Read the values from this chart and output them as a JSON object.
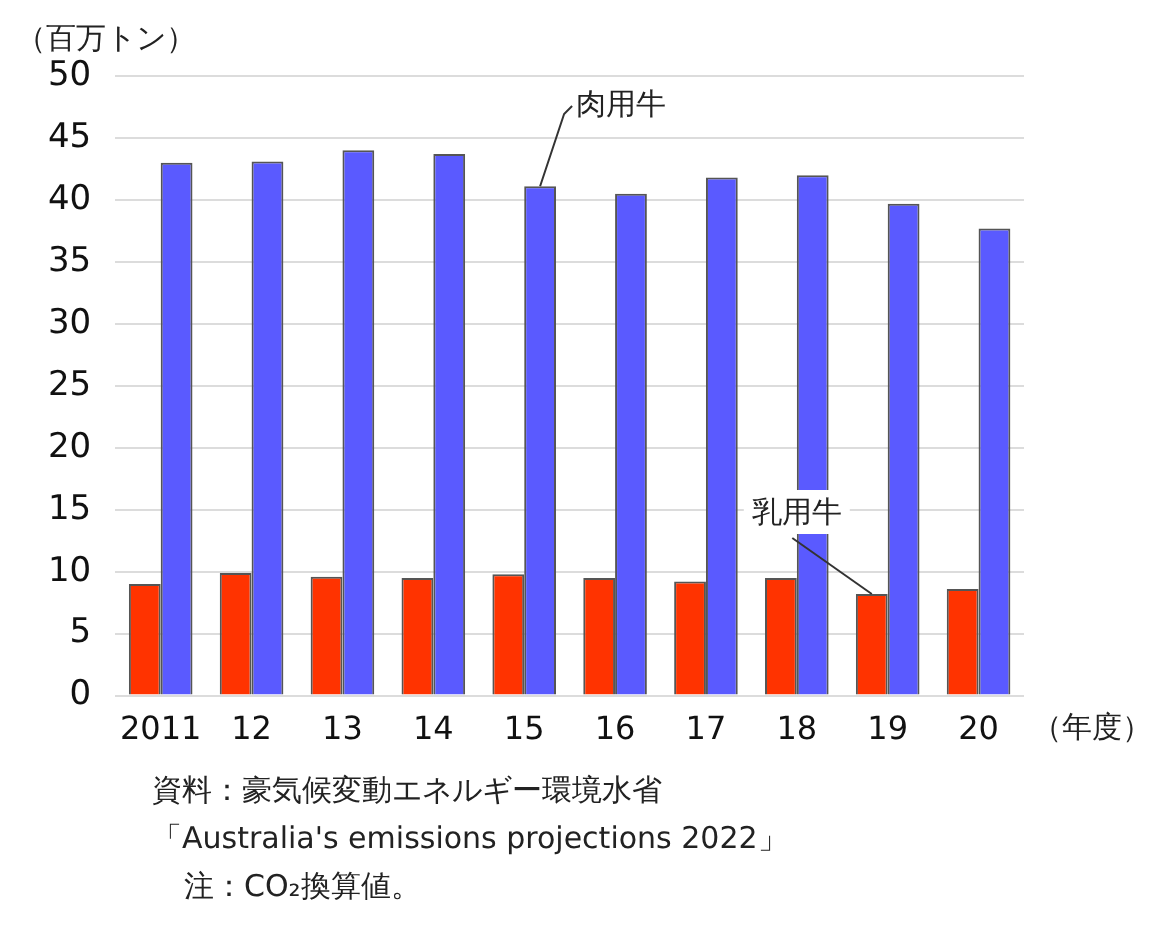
{
  "chart_data": {
    "type": "bar",
    "ylabel": "（百万トン）",
    "xlabel": "（年度）",
    "categories": [
      "2011",
      "12",
      "13",
      "14",
      "15",
      "16",
      "17",
      "18",
      "19",
      "20"
    ],
    "series": [
      {
        "name": "乳用牛",
        "color": "#ff3300",
        "values": [
          9.0,
          9.9,
          9.6,
          9.5,
          9.8,
          9.5,
          9.2,
          9.5,
          8.2,
          8.6
        ]
      },
      {
        "name": "肉用牛",
        "color": "#5a5aff",
        "values": [
          43.0,
          43.1,
          44.0,
          43.7,
          41.1,
          40.5,
          41.8,
          42.0,
          39.7,
          37.7
        ]
      }
    ],
    "ylim": [
      0,
      50
    ],
    "yticks": [
      0,
      5,
      10,
      15,
      20,
      25,
      30,
      35,
      40,
      45,
      50
    ],
    "grid": "y",
    "legend": false,
    "annotations": [
      "資料：豪気候変動エネルギー環境水省",
      "「Australia's emissions projections 2022」",
      "注：CO₂換算値。"
    ]
  }
}
